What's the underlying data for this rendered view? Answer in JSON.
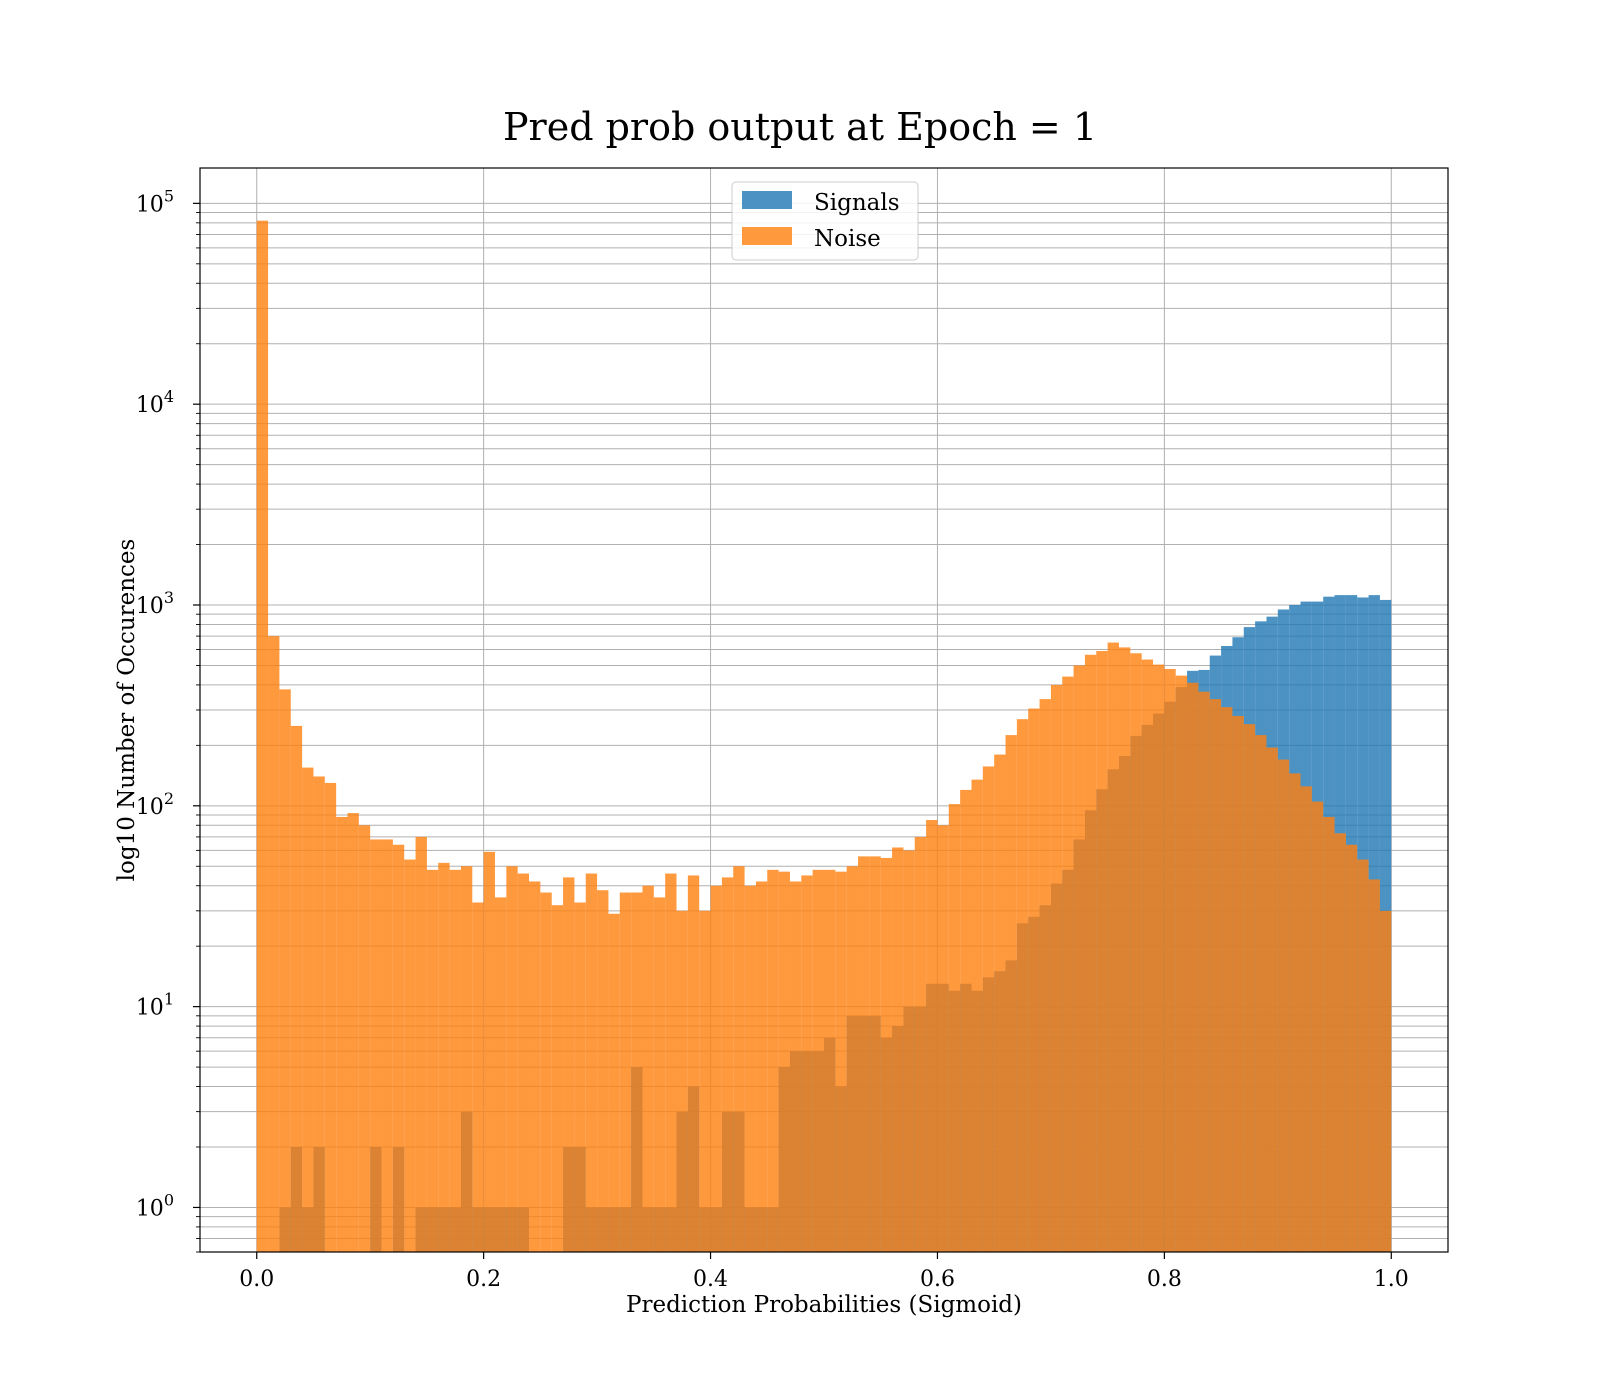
{
  "chart_data": {
    "type": "histogram",
    "title": "Pred prob output at Epoch = 1",
    "xlabel": "Prediction Probabilities (Sigmoid)",
    "ylabel": "log10 Number of Occurences",
    "xlim": [
      -0.05,
      1.05
    ],
    "ylim": [
      0.6,
      150000
    ],
    "yscale": "log",
    "grid": true,
    "legend_position": "upper center",
    "x_ticks": [
      "0.0",
      "0.2",
      "0.4",
      "0.6",
      "0.8",
      "1.0"
    ],
    "x_tick_values": [
      0.0,
      0.2,
      0.4,
      0.6,
      0.8,
      1.0
    ],
    "y_ticks": [
      {
        "base": "10",
        "exp": "0",
        "value": 1
      },
      {
        "base": "10",
        "exp": "1",
        "value": 10
      },
      {
        "base": "10",
        "exp": "2",
        "value": 100
      },
      {
        "base": "10",
        "exp": "3",
        "value": 1000
      },
      {
        "base": "10",
        "exp": "4",
        "value": 10000
      },
      {
        "base": "10",
        "exp": "5",
        "value": 100000
      }
    ],
    "bin_start": 0.0,
    "bin_width": 0.01,
    "series": [
      {
        "name": "Signals",
        "color": "#1f77b4",
        "opacity": 0.8,
        "values": [
          0,
          0,
          1,
          2,
          1,
          2,
          0,
          0,
          0,
          0,
          2,
          0,
          2,
          0,
          1,
          1,
          1,
          1,
          3,
          1,
          1,
          1,
          1,
          1,
          0,
          0,
          0,
          2,
          2,
          1,
          1,
          1,
          1,
          5,
          1,
          1,
          1,
          3,
          4,
          1,
          1,
          3,
          3,
          1,
          1,
          1,
          5,
          6,
          6,
          6,
          7,
          4,
          9,
          9,
          9,
          7,
          8,
          10,
          10,
          13,
          13,
          12,
          13,
          12,
          14,
          15,
          17,
          26,
          28,
          32,
          41,
          48,
          68,
          95,
          121,
          152,
          177,
          223,
          253,
          288,
          330,
          390,
          470,
          475,
          560,
          625,
          691,
          776,
          829,
          875,
          950,
          1000,
          1040,
          1040,
          1100,
          1120,
          1120,
          1090,
          1120,
          1060
        ]
      },
      {
        "name": "Noise",
        "color": "#ff7f0e",
        "opacity": 0.8,
        "values": [
          82000,
          700,
          380,
          250,
          155,
          140,
          130,
          88,
          92,
          80,
          68,
          68,
          64,
          54,
          70,
          48,
          52,
          48,
          50,
          33,
          59,
          35,
          50,
          46,
          42,
          37,
          32,
          44,
          33,
          46,
          38,
          29,
          37,
          37,
          40,
          35,
          46,
          30,
          45,
          30,
          40,
          44,
          50,
          40,
          42,
          48,
          47,
          42,
          45,
          48,
          48,
          47,
          50,
          56,
          56,
          55,
          62,
          60,
          70,
          85,
          80,
          102,
          120,
          135,
          157,
          180,
          225,
          270,
          305,
          340,
          400,
          440,
          500,
          565,
          590,
          650,
          615,
          575,
          535,
          505,
          480,
          445,
          410,
          370,
          340,
          310,
          280,
          255,
          225,
          195,
          170,
          145,
          125,
          105,
          88,
          73,
          64,
          54,
          43,
          30
        ]
      }
    ]
  }
}
